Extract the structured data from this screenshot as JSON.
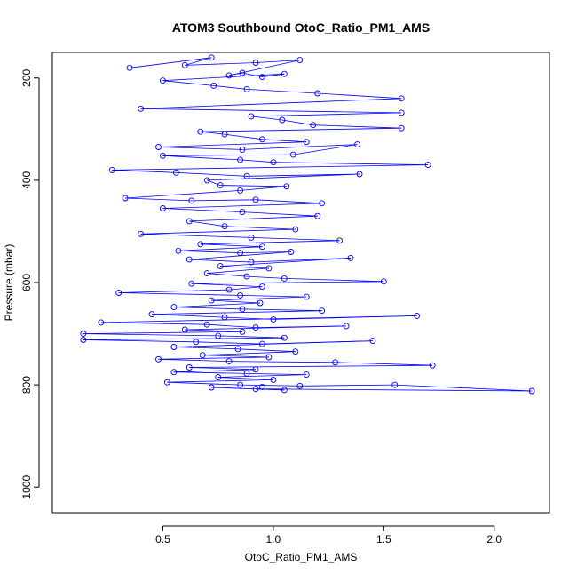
{
  "chart_data": {
    "type": "scatter",
    "title": "ATOM3 Southbound OtoC_Ratio_PM1_AMS",
    "xlabel": "OtoC_Ratio_PM1_AMS",
    "ylabel": "Pressure (mbar)",
    "xlim": [
      0.0,
      2.25
    ],
    "ylim": [
      1050,
      150
    ],
    "y_inverted": true,
    "x_ticks": [
      0.5,
      1.0,
      1.5,
      2.0
    ],
    "x_tick_labels": [
      "0.5",
      "1.0",
      "1.5",
      "2.0"
    ],
    "y_ticks": [
      200,
      400,
      600,
      800,
      1000
    ],
    "y_tick_labels": [
      "200",
      "400",
      "600",
      "800",
      "1000"
    ],
    "grid": false,
    "legend": "none",
    "marker": "open-circle",
    "connected": true,
    "series_color": "#0000ff",
    "points": [
      [
        0.35,
        180
      ],
      [
        0.72,
        160
      ],
      [
        0.6,
        175
      ],
      [
        0.92,
        170
      ],
      [
        1.12,
        165
      ],
      [
        0.8,
        195
      ],
      [
        0.86,
        190
      ],
      [
        0.95,
        198
      ],
      [
        1.05,
        192
      ],
      [
        0.5,
        205
      ],
      [
        0.73,
        215
      ],
      [
        0.88,
        222
      ],
      [
        1.2,
        230
      ],
      [
        1.58,
        240
      ],
      [
        0.4,
        260
      ],
      [
        1.58,
        268
      ],
      [
        0.9,
        275
      ],
      [
        1.04,
        282
      ],
      [
        1.18,
        292
      ],
      [
        1.58,
        298
      ],
      [
        0.67,
        305
      ],
      [
        0.78,
        310
      ],
      [
        0.95,
        320
      ],
      [
        1.15,
        325
      ],
      [
        0.48,
        335
      ],
      [
        0.86,
        340
      ],
      [
        1.38,
        330
      ],
      [
        1.09,
        350
      ],
      [
        0.5,
        352
      ],
      [
        0.85,
        360
      ],
      [
        1.0,
        365
      ],
      [
        1.7,
        370
      ],
      [
        0.27,
        380
      ],
      [
        0.56,
        385
      ],
      [
        0.88,
        392
      ],
      [
        1.39,
        388
      ],
      [
        0.7,
        400
      ],
      [
        0.76,
        410
      ],
      [
        1.06,
        412
      ],
      [
        0.85,
        420
      ],
      [
        0.33,
        435
      ],
      [
        0.63,
        440
      ],
      [
        0.92,
        438
      ],
      [
        1.22,
        445
      ],
      [
        0.5,
        455
      ],
      [
        0.86,
        462
      ],
      [
        1.2,
        470
      ],
      [
        0.62,
        480
      ],
      [
        0.78,
        490
      ],
      [
        1.1,
        496
      ],
      [
        0.4,
        505
      ],
      [
        0.9,
        512
      ],
      [
        1.3,
        518
      ],
      [
        0.67,
        525
      ],
      [
        0.95,
        530
      ],
      [
        0.57,
        538
      ],
      [
        0.85,
        542
      ],
      [
        1.08,
        540
      ],
      [
        0.62,
        555
      ],
      [
        0.9,
        560
      ],
      [
        1.35,
        552
      ],
      [
        0.76,
        568
      ],
      [
        0.98,
        572
      ],
      [
        0.7,
        582
      ],
      [
        0.88,
        588
      ],
      [
        1.05,
        592
      ],
      [
        1.5,
        598
      ],
      [
        0.63,
        602
      ],
      [
        0.95,
        608
      ],
      [
        0.8,
        614
      ],
      [
        0.3,
        620
      ],
      [
        0.85,
        625
      ],
      [
        1.15,
        628
      ],
      [
        0.72,
        635
      ],
      [
        0.94,
        640
      ],
      [
        0.55,
        648
      ],
      [
        0.86,
        652
      ],
      [
        1.22,
        655
      ],
      [
        0.45,
        662
      ],
      [
        0.78,
        668
      ],
      [
        1.0,
        672
      ],
      [
        1.65,
        665
      ],
      [
        0.22,
        678
      ],
      [
        0.7,
        682
      ],
      [
        0.92,
        688
      ],
      [
        1.33,
        685
      ],
      [
        0.6,
        692
      ],
      [
        0.86,
        696
      ],
      [
        0.14,
        700
      ],
      [
        0.75,
        704
      ],
      [
        1.05,
        708
      ],
      [
        0.14,
        712
      ],
      [
        0.65,
        716
      ],
      [
        0.95,
        720
      ],
      [
        1.45,
        714
      ],
      [
        0.55,
        726
      ],
      [
        0.84,
        730
      ],
      [
        1.1,
        735
      ],
      [
        0.68,
        742
      ],
      [
        0.98,
        746
      ],
      [
        0.48,
        750
      ],
      [
        0.8,
        754
      ],
      [
        1.28,
        756
      ],
      [
        1.72,
        762
      ],
      [
        0.62,
        766
      ],
      [
        0.92,
        770
      ],
      [
        0.55,
        775
      ],
      [
        0.88,
        778
      ],
      [
        1.15,
        780
      ],
      [
        0.75,
        785
      ],
      [
        1.0,
        790
      ],
      [
        0.52,
        795
      ],
      [
        0.85,
        800
      ],
      [
        1.12,
        802
      ],
      [
        1.55,
        800
      ],
      [
        2.17,
        812
      ],
      [
        0.92,
        808
      ],
      [
        1.05,
        810
      ],
      [
        0.72,
        805
      ],
      [
        0.95,
        804
      ]
    ]
  }
}
